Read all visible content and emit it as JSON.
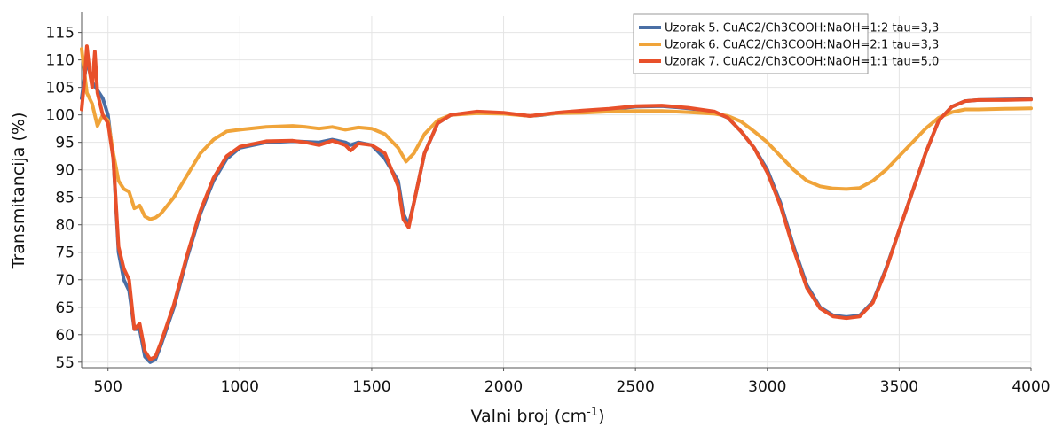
{
  "chart_data": {
    "type": "line",
    "xlabel_main": "Valni broj (cm",
    "xlabel_sup": "-1",
    "xlabel_end": ")",
    "ylabel": "Transmitancija (%)",
    "xlim": [
      400,
      4000
    ],
    "ylim": [
      54,
      118
    ],
    "x_ticks": [
      500,
      1000,
      1500,
      2000,
      2500,
      3000,
      3500,
      4000
    ],
    "y_ticks": [
      55,
      60,
      65,
      70,
      75,
      80,
      85,
      90,
      95,
      100,
      105,
      110,
      115
    ],
    "grid": true,
    "legend_position": "top-right",
    "series": [
      {
        "name": "Uzorak 5. CuAC2/Ch3COOH:NaOH=1:2 tau=3,3",
        "color": "#4a6fa5",
        "points": [
          [
            400,
            103
          ],
          [
            420,
            110
          ],
          [
            440,
            106
          ],
          [
            460,
            104.5
          ],
          [
            480,
            103
          ],
          [
            500,
            100
          ],
          [
            520,
            92
          ],
          [
            540,
            75
          ],
          [
            560,
            70
          ],
          [
            580,
            68
          ],
          [
            600,
            61
          ],
          [
            620,
            61
          ],
          [
            640,
            56
          ],
          [
            660,
            55
          ],
          [
            680,
            55.5
          ],
          [
            700,
            58
          ],
          [
            750,
            65
          ],
          [
            800,
            74
          ],
          [
            850,
            82
          ],
          [
            900,
            88
          ],
          [
            950,
            92
          ],
          [
            1000,
            94
          ],
          [
            1100,
            95
          ],
          [
            1200,
            95.2
          ],
          [
            1300,
            95
          ],
          [
            1350,
            95.5
          ],
          [
            1400,
            95
          ],
          [
            1420,
            94.5
          ],
          [
            1450,
            95
          ],
          [
            1500,
            94.5
          ],
          [
            1550,
            92
          ],
          [
            1600,
            88
          ],
          [
            1620,
            82
          ],
          [
            1640,
            80
          ],
          [
            1660,
            84
          ],
          [
            1700,
            93
          ],
          [
            1750,
            98.5
          ],
          [
            1800,
            100
          ],
          [
            1900,
            100.5
          ],
          [
            2000,
            100.3
          ],
          [
            2100,
            99.8
          ],
          [
            2150,
            100
          ],
          [
            2200,
            100.3
          ],
          [
            2300,
            100.7
          ],
          [
            2400,
            101
          ],
          [
            2500,
            101.5
          ],
          [
            2600,
            101.6
          ],
          [
            2700,
            101.2
          ],
          [
            2800,
            100.5
          ],
          [
            2850,
            99.5
          ],
          [
            2900,
            97
          ],
          [
            2950,
            94
          ],
          [
            3000,
            90
          ],
          [
            3050,
            84
          ],
          [
            3100,
            76
          ],
          [
            3150,
            69
          ],
          [
            3200,
            65
          ],
          [
            3250,
            63.5
          ],
          [
            3300,
            63.2
          ],
          [
            3350,
            63.5
          ],
          [
            3400,
            66
          ],
          [
            3450,
            72
          ],
          [
            3500,
            79
          ],
          [
            3550,
            86
          ],
          [
            3600,
            93
          ],
          [
            3650,
            99
          ],
          [
            3700,
            101.5
          ],
          [
            3750,
            102.5
          ],
          [
            3800,
            102.7
          ],
          [
            3900,
            102.8
          ],
          [
            4000,
            102.9
          ]
        ]
      },
      {
        "name": "Uzorak 6. CuAC2/Ch3COOH:NaOH=2:1 tau=3,3",
        "color": "#f0a43a",
        "points": [
          [
            400,
            112
          ],
          [
            420,
            104
          ],
          [
            440,
            102
          ],
          [
            460,
            98
          ],
          [
            480,
            100
          ],
          [
            500,
            99
          ],
          [
            520,
            93
          ],
          [
            540,
            88
          ],
          [
            560,
            86.5
          ],
          [
            580,
            86
          ],
          [
            600,
            83
          ],
          [
            620,
            83.5
          ],
          [
            640,
            81.5
          ],
          [
            660,
            81
          ],
          [
            680,
            81.3
          ],
          [
            700,
            82
          ],
          [
            750,
            85
          ],
          [
            800,
            89
          ],
          [
            850,
            93
          ],
          [
            900,
            95.5
          ],
          [
            950,
            97
          ],
          [
            1000,
            97.3
          ],
          [
            1100,
            97.8
          ],
          [
            1200,
            98
          ],
          [
            1250,
            97.8
          ],
          [
            1300,
            97.5
          ],
          [
            1350,
            97.8
          ],
          [
            1400,
            97.3
          ],
          [
            1450,
            97.7
          ],
          [
            1500,
            97.5
          ],
          [
            1550,
            96.5
          ],
          [
            1600,
            94
          ],
          [
            1630,
            91.5
          ],
          [
            1660,
            93
          ],
          [
            1700,
            96.5
          ],
          [
            1750,
            99
          ],
          [
            1800,
            100
          ],
          [
            1900,
            100.3
          ],
          [
            2000,
            100.2
          ],
          [
            2100,
            99.8
          ],
          [
            2200,
            100.3
          ],
          [
            2300,
            100.4
          ],
          [
            2400,
            100.6
          ],
          [
            2500,
            100.7
          ],
          [
            2600,
            100.7
          ],
          [
            2700,
            100.5
          ],
          [
            2800,
            100.2
          ],
          [
            2850,
            99.8
          ],
          [
            2900,
            98.8
          ],
          [
            2950,
            97
          ],
          [
            3000,
            95
          ],
          [
            3050,
            92.5
          ],
          [
            3100,
            90
          ],
          [
            3150,
            88
          ],
          [
            3200,
            87
          ],
          [
            3250,
            86.6
          ],
          [
            3300,
            86.5
          ],
          [
            3350,
            86.7
          ],
          [
            3400,
            88
          ],
          [
            3450,
            90
          ],
          [
            3500,
            92.5
          ],
          [
            3550,
            95
          ],
          [
            3600,
            97.5
          ],
          [
            3650,
            99.5
          ],
          [
            3700,
            100.5
          ],
          [
            3750,
            101
          ],
          [
            3800,
            101
          ],
          [
            3900,
            101.1
          ],
          [
            4000,
            101.2
          ]
        ]
      },
      {
        "name": "Uzorak 7. CuAC2/Ch3COOH:NaOH=1:1 tau=5,0",
        "color": "#e8502a",
        "points": [
          [
            400,
            101
          ],
          [
            410,
            106
          ],
          [
            420,
            112.5
          ],
          [
            430,
            108
          ],
          [
            440,
            105
          ],
          [
            450,
            111.5
          ],
          [
            460,
            104
          ],
          [
            480,
            100
          ],
          [
            500,
            98.5
          ],
          [
            520,
            92
          ],
          [
            540,
            76
          ],
          [
            560,
            72
          ],
          [
            580,
            70
          ],
          [
            600,
            61
          ],
          [
            620,
            62
          ],
          [
            640,
            57
          ],
          [
            660,
            55.5
          ],
          [
            680,
            56
          ],
          [
            700,
            58.5
          ],
          [
            750,
            65.5
          ],
          [
            800,
            74.5
          ],
          [
            850,
            82.5
          ],
          [
            900,
            88.5
          ],
          [
            950,
            92.5
          ],
          [
            1000,
            94.2
          ],
          [
            1100,
            95.2
          ],
          [
            1200,
            95.3
          ],
          [
            1250,
            95
          ],
          [
            1300,
            94.5
          ],
          [
            1350,
            95.3
          ],
          [
            1400,
            94.5
          ],
          [
            1420,
            93.5
          ],
          [
            1450,
            94.8
          ],
          [
            1500,
            94.5
          ],
          [
            1550,
            93
          ],
          [
            1600,
            87
          ],
          [
            1620,
            81
          ],
          [
            1640,
            79.5
          ],
          [
            1660,
            84
          ],
          [
            1700,
            93
          ],
          [
            1750,
            98.5
          ],
          [
            1800,
            100
          ],
          [
            1900,
            100.6
          ],
          [
            2000,
            100.4
          ],
          [
            2100,
            99.8
          ],
          [
            2150,
            100.1
          ],
          [
            2200,
            100.4
          ],
          [
            2300,
            100.8
          ],
          [
            2400,
            101.1
          ],
          [
            2500,
            101.6
          ],
          [
            2600,
            101.7
          ],
          [
            2700,
            101.3
          ],
          [
            2800,
            100.6
          ],
          [
            2850,
            99.5
          ],
          [
            2900,
            97
          ],
          [
            2950,
            94
          ],
          [
            3000,
            89.5
          ],
          [
            3050,
            83.5
          ],
          [
            3100,
            75.5
          ],
          [
            3150,
            68.5
          ],
          [
            3200,
            64.8
          ],
          [
            3250,
            63.3
          ],
          [
            3300,
            63
          ],
          [
            3350,
            63.3
          ],
          [
            3400,
            65.8
          ],
          [
            3450,
            71.8
          ],
          [
            3500,
            79
          ],
          [
            3550,
            86
          ],
          [
            3600,
            93
          ],
          [
            3650,
            99
          ],
          [
            3700,
            101.5
          ],
          [
            3750,
            102.5
          ],
          [
            3800,
            102.7
          ],
          [
            3900,
            102.7
          ],
          [
            4000,
            102.8
          ]
        ]
      }
    ]
  }
}
